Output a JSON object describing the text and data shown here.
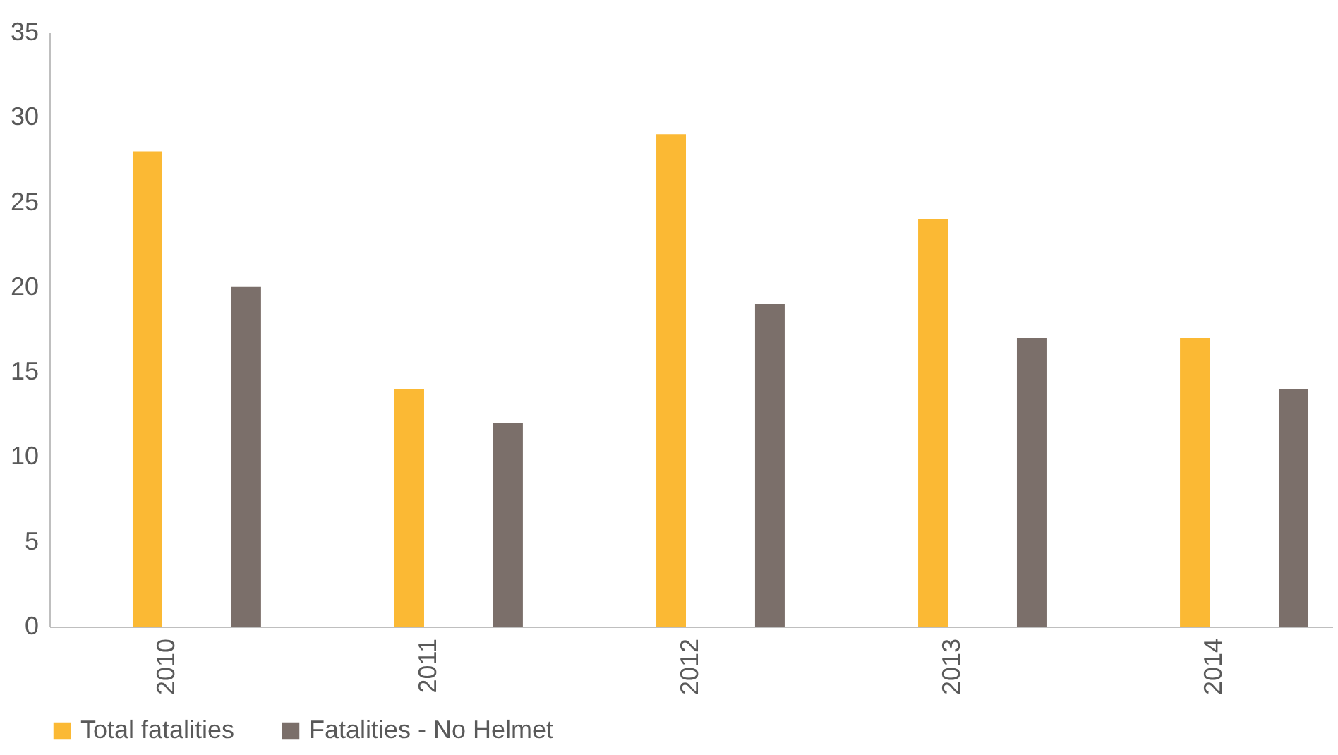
{
  "chart_data": {
    "type": "bar",
    "categories": [
      "2010",
      "2011",
      "2012",
      "2013",
      "2014"
    ],
    "series": [
      {
        "name": "Total fatalities",
        "color": "#fbb934",
        "values": [
          28,
          14,
          29,
          24,
          17
        ]
      },
      {
        "name": "Fatalities - No Helmet",
        "color": "#7b6f6a",
        "values": [
          20,
          12,
          19,
          17,
          14
        ]
      }
    ],
    "ylim": [
      0,
      35
    ],
    "yticks": [
      0,
      5,
      10,
      15,
      20,
      25,
      30,
      35
    ],
    "grid": false,
    "legend": "bottom"
  }
}
